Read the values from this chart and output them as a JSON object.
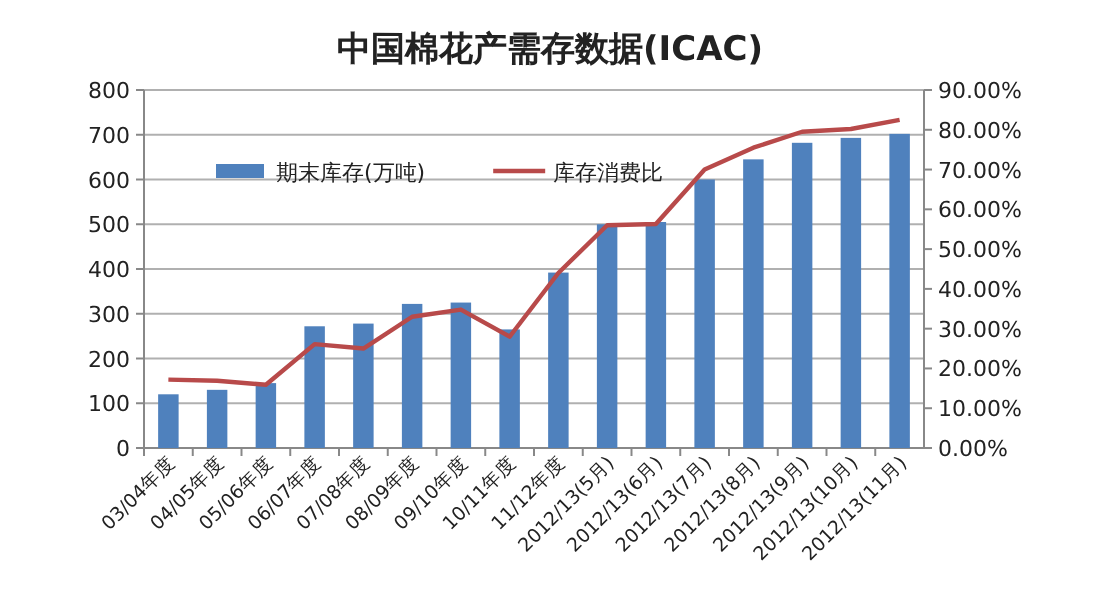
{
  "chart_data": {
    "type": "bar",
    "title": "中国棉花产需存数据(ICAC)",
    "categories": [
      "03/04年度",
      "04/05年度",
      "05/06年度",
      "06/07年度",
      "07/08年度",
      "08/09年度",
      "09/10年度",
      "10/11年度",
      "11/12年度",
      "2012/13(5月)",
      "2012/13(6月)",
      "2012/13(7月)",
      "2012/13(8月)",
      "2012/13(9月)",
      "2012/13(10月)",
      "2012/13(11月)"
    ],
    "series": [
      {
        "name": "期末库存(万吨)",
        "color": "#4f81bd",
        "values": [
          120,
          130,
          145,
          272,
          278,
          322,
          325,
          265,
          392,
          500,
          505,
          600,
          645,
          682,
          693,
          702
        ]
      },
      {
        "name": "库存消费比",
        "type": "line",
        "axis": "y2",
        "color": "#b84a4a",
        "values": [
          17.2,
          16.9,
          15.9,
          26.1,
          25.0,
          33.0,
          34.8,
          28.0,
          44.0,
          56.0,
          56.3,
          70.0,
          75.5,
          79.5,
          80.2,
          82.5
        ]
      }
    ],
    "ylim": [
      0,
      800
    ],
    "yticks": [
      0,
      100,
      200,
      300,
      400,
      500,
      600,
      700,
      800
    ],
    "y2lim": [
      0,
      90
    ],
    "y2ticks": [
      {
        "value": 0,
        "label": "0.00%"
      },
      {
        "value": 10,
        "label": "10.00%"
      },
      {
        "value": 20,
        "label": "20.00%"
      },
      {
        "value": 30,
        "label": "30.00%"
      },
      {
        "value": 40,
        "label": "40.00%"
      },
      {
        "value": 50,
        "label": "50.00%"
      },
      {
        "value": 60,
        "label": "60.00%"
      },
      {
        "value": 70,
        "label": "70.00%"
      },
      {
        "value": 80,
        "label": "80.00%"
      },
      {
        "value": 90,
        "label": "90.00%"
      }
    ],
    "grid": "y",
    "legend": "top left",
    "marker": "none"
  }
}
